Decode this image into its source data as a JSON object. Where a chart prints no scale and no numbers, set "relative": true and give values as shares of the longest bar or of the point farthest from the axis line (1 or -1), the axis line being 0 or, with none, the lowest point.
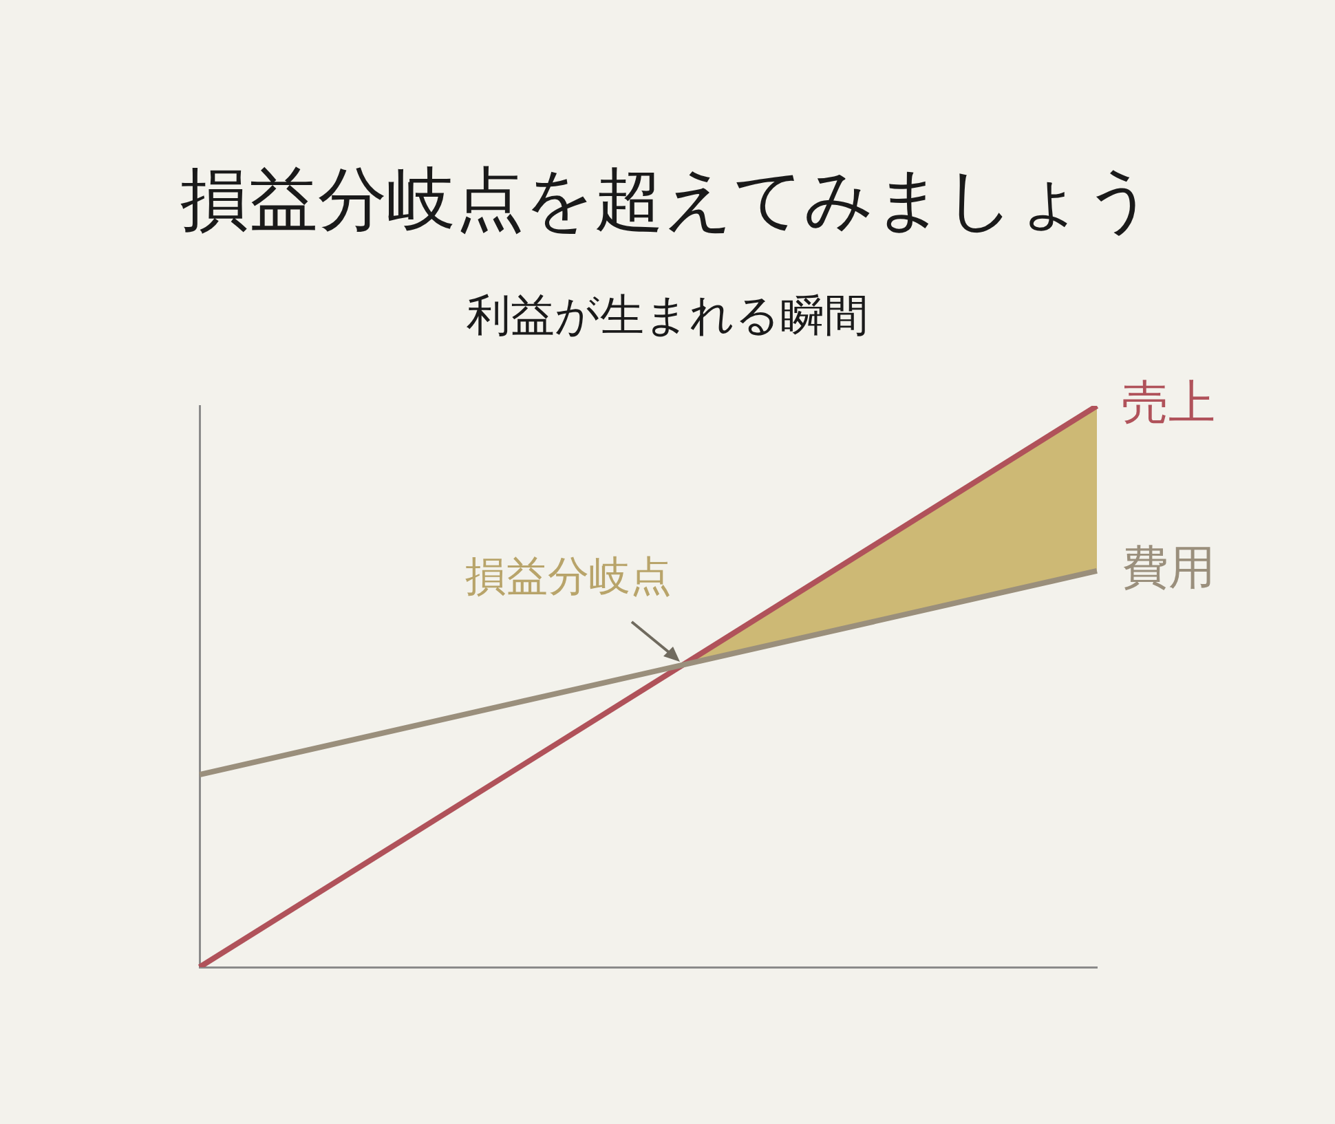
{
  "chart_data": {
    "type": "line",
    "title": "損益分岐点を超えてみましょう",
    "subtitle": "利益が生まれる瞬間",
    "relative": true,
    "categories": [
      null,
      null
    ],
    "series": [
      {
        "name": "売上",
        "color": "#b0525a",
        "values": [
          0,
          1
        ]
      },
      {
        "name": "費用",
        "color": "#9a8f7c",
        "values": [
          0.343,
          0.706
        ]
      }
    ],
    "annotations": [
      "損益分岐点"
    ],
    "grid": false,
    "legend": false
  }
}
